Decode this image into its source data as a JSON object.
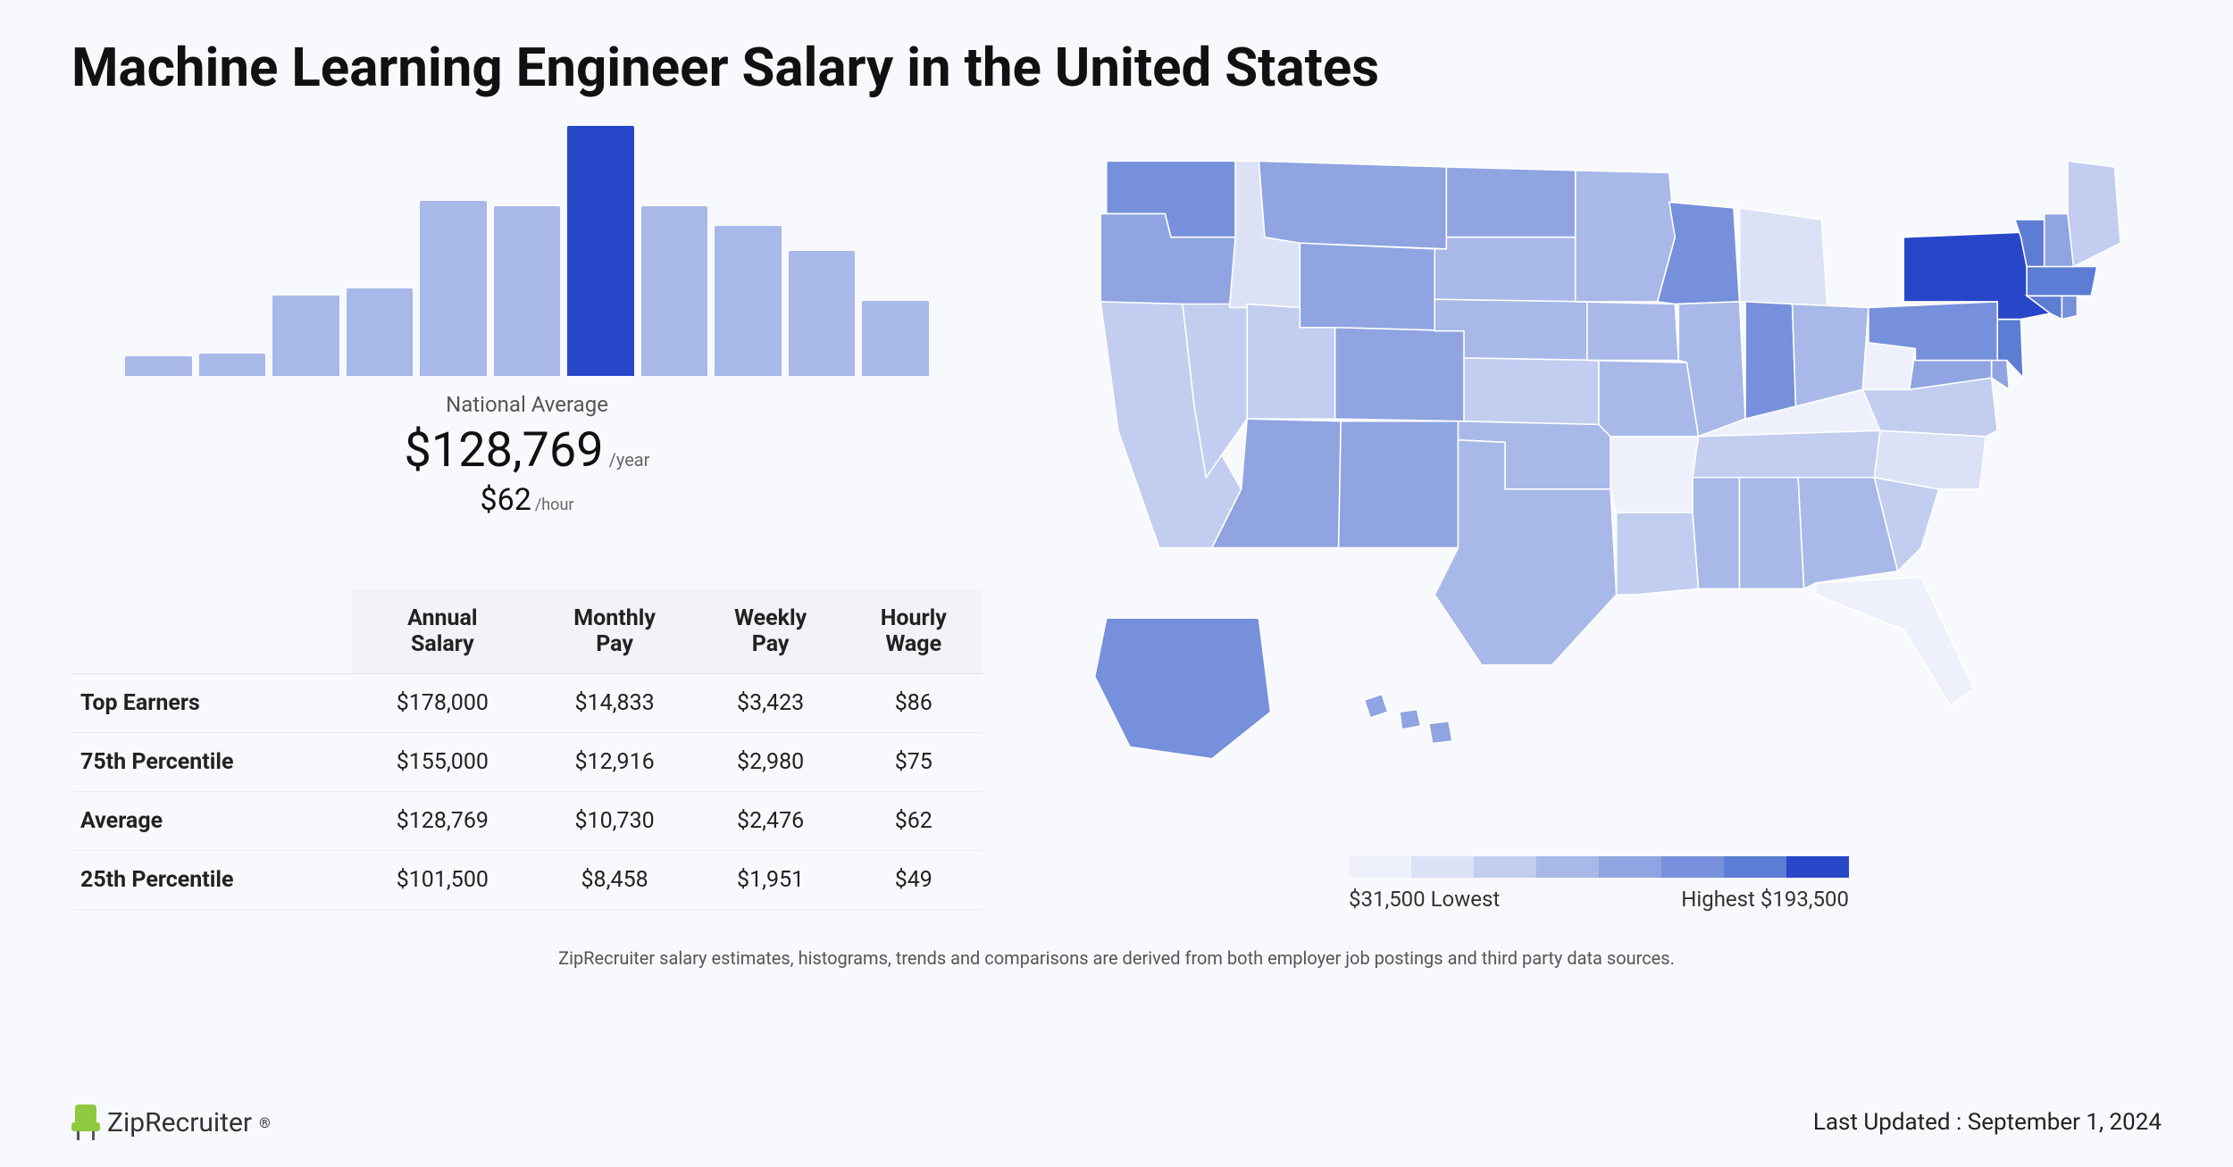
{
  "title": "Machine Learning Engineer Salary in the United States",
  "histogram": {
    "type": "histogram",
    "bar_heights_pct": [
      8,
      9,
      32,
      35,
      70,
      68,
      100,
      68,
      60,
      50,
      30
    ],
    "highlight_index": 6,
    "bar_color": "#a8b8e8",
    "highlight_color": "#2846c8",
    "label": "National Average",
    "annual_value": "$128,769",
    "annual_suffix": "/year",
    "hourly_value": "$62",
    "hourly_suffix": "/hour"
  },
  "table": {
    "columns": [
      "",
      "Annual Salary",
      "Monthly Pay",
      "Weekly Pay",
      "Hourly Wage"
    ],
    "rows": [
      [
        "Top Earners",
        "$178,000",
        "$14,833",
        "$3,423",
        "$86"
      ],
      [
        "75th Percentile",
        "$155,000",
        "$12,916",
        "$2,980",
        "$75"
      ],
      [
        "Average",
        "$128,769",
        "$10,730",
        "$2,476",
        "$62"
      ],
      [
        "25th Percentile",
        "$101,500",
        "$8,458",
        "$1,951",
        "$49"
      ]
    ]
  },
  "map": {
    "type": "choropleth",
    "legend_colors": [
      "#eef1fb",
      "#dbe2f6",
      "#c2cdf0",
      "#a8b8e8",
      "#8fa4e1",
      "#7690db",
      "#5d7cd4",
      "#2846c8"
    ],
    "legend_low_label": "$31,500 Lowest",
    "legend_high_label": "Highest $193,500",
    "state_colors": {
      "WA": "#7690db",
      "OR": "#8fa4e1",
      "CA": "#c2cdf0",
      "NV": "#c2cdf0",
      "ID": "#dbe2f6",
      "MT": "#8fa4e1",
      "WY": "#8fa4e1",
      "UT": "#c2cdf0",
      "AZ": "#8fa4e1",
      "CO": "#8fa4e1",
      "NM": "#8fa4e1",
      "ND": "#8fa4e1",
      "SD": "#a8b8e8",
      "NE": "#a8b8e8",
      "KS": "#c2cdf0",
      "OK": "#a8b8e8",
      "TX": "#a8b8e8",
      "MN": "#a8b8e8",
      "IA": "#a8b8e8",
      "MO": "#a8b8e8",
      "AR": "#eef1fb",
      "LA": "#c2cdf0",
      "WI": "#7690db",
      "IL": "#a8b8e8",
      "MI": "#dbe2f6",
      "IN": "#7690db",
      "OH": "#a8b8e8",
      "KY": "#eef1fb",
      "TN": "#c2cdf0",
      "MS": "#a8b8e8",
      "AL": "#a8b8e8",
      "GA": "#a8b8e8",
      "FL": "#eef1fb",
      "SC": "#c2cdf0",
      "NC": "#dbe2f6",
      "VA": "#c2cdf0",
      "WV": "#eef1fb",
      "MD": "#8fa4e1",
      "DE": "#8fa4e1",
      "PA": "#7690db",
      "NJ": "#5d7cd4",
      "NY": "#2846c8",
      "CT": "#5d7cd4",
      "RI": "#7690db",
      "MA": "#5d7cd4",
      "VT": "#5d7cd4",
      "NH": "#8fa4e1",
      "ME": "#c2cdf0",
      "AK": "#7690db",
      "HI": "#8fa4e1"
    }
  },
  "disclaimer": "ZipRecruiter salary estimates, histograms, trends and comparisons are derived from both employer job postings and third party data sources.",
  "footer": {
    "brand": "ZipRecruiter",
    "last_updated": "Last Updated : September 1, 2024"
  }
}
